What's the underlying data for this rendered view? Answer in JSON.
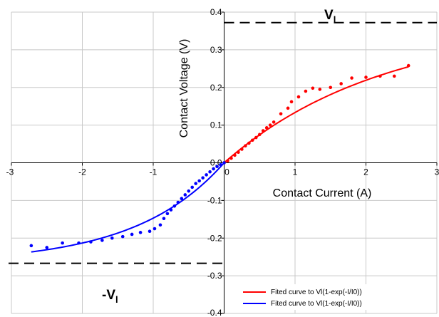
{
  "chart_data": {
    "type": "scatter",
    "title": "",
    "xlabel": "Contact Current (A)",
    "ylabel": "Contact Voltage (V)",
    "xlim": [
      -3,
      3
    ],
    "ylim": [
      -0.4,
      0.4
    ],
    "x_ticks": [
      "-3",
      "-2",
      "-1",
      "0",
      "1",
      "2",
      "3"
    ],
    "y_ticks": [
      "-0.4",
      "-0.3",
      "-0.2",
      "-0.1",
      "0.0",
      "0.1",
      "0.2",
      "0.3",
      "0.4"
    ],
    "grid": true,
    "legend_position": "bottom-right",
    "vl_level": 0.372,
    "neg_vl_level": -0.267,
    "vl_label": "V",
    "vl_subscript": "l",
    "neg_vl_label": "-V",
    "neg_vl_subscript": "l",
    "series": [
      {
        "name": "",
        "kind": "points",
        "color": "#ff0000",
        "x": [
          0.0,
          0.05,
          0.1,
          0.15,
          0.2,
          0.25,
          0.3,
          0.35,
          0.4,
          0.45,
          0.5,
          0.55,
          0.6,
          0.65,
          0.7,
          0.8,
          0.9,
          0.95,
          1.05,
          1.15,
          1.25,
          1.35,
          1.5,
          1.65,
          1.8,
          2.0,
          2.2,
          2.4,
          2.6
        ],
        "y": [
          0.0,
          0.005,
          0.012,
          0.02,
          0.028,
          0.036,
          0.045,
          0.052,
          0.06,
          0.067,
          0.075,
          0.085,
          0.093,
          0.1,
          0.108,
          0.13,
          0.145,
          0.162,
          0.175,
          0.19,
          0.198,
          0.195,
          0.2,
          0.21,
          0.225,
          0.227,
          0.23,
          0.23,
          0.258
        ]
      },
      {
        "name": "Fited curve to Vl(1-exp(-I/I0))",
        "kind": "curve",
        "color": "#ff0000",
        "vl": 0.372,
        "i0": 2.25,
        "x_range": [
          0,
          2.6
        ]
      },
      {
        "name": "",
        "kind": "points",
        "color": "#0000ff",
        "x": [
          -2.72,
          -2.5,
          -2.28,
          -2.05,
          -1.88,
          -1.72,
          -1.58,
          -1.43,
          -1.3,
          -1.18,
          -1.05,
          -0.98,
          -0.9,
          -0.85,
          -0.8,
          -0.75,
          -0.7,
          -0.65,
          -0.6,
          -0.55,
          -0.5,
          -0.45,
          -0.4,
          -0.35,
          -0.3,
          -0.25,
          -0.2,
          -0.15,
          -0.1,
          -0.05,
          0.0
        ],
        "y": [
          -0.22,
          -0.225,
          -0.213,
          -0.213,
          -0.21,
          -0.206,
          -0.2,
          -0.196,
          -0.19,
          -0.185,
          -0.182,
          -0.175,
          -0.165,
          -0.148,
          -0.135,
          -0.125,
          -0.115,
          -0.105,
          -0.095,
          -0.085,
          -0.075,
          -0.065,
          -0.055,
          -0.048,
          -0.04,
          -0.032,
          -0.024,
          -0.016,
          -0.01,
          -0.005,
          0.0
        ]
      },
      {
        "name": "Fited curve to Vl(1-exp(-I/I0))",
        "kind": "curve",
        "color": "#0000ff",
        "vl": -0.267,
        "i0": -1.25,
        "x_range": [
          -2.72,
          0
        ]
      }
    ]
  }
}
